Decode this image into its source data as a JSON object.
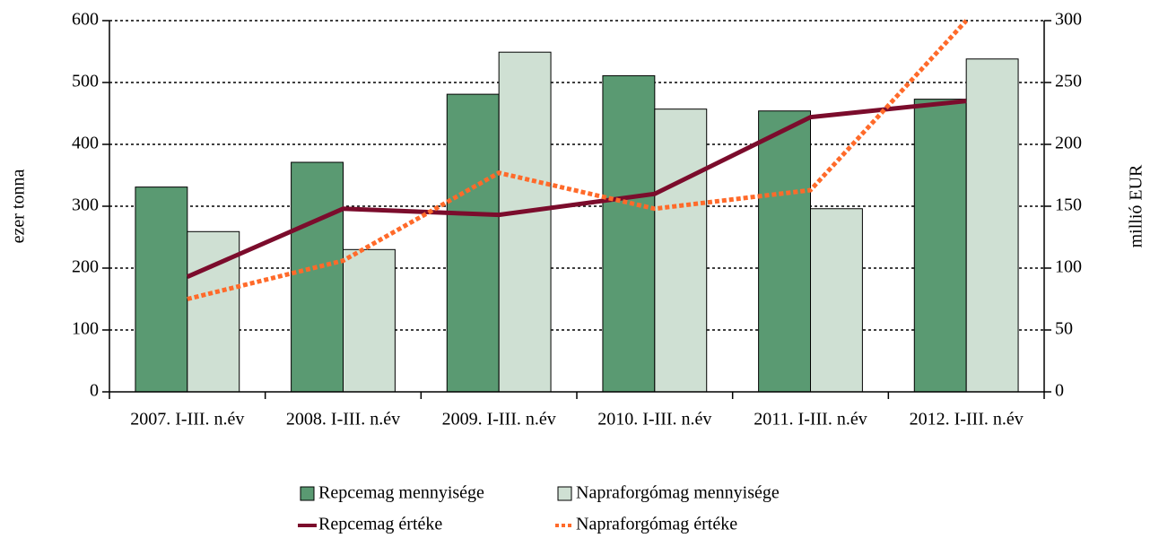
{
  "chart_data": {
    "type": "bar",
    "categories": [
      "2007. I-III. n.év",
      "2008. I-III. n.év",
      "2009. I-III. n.év",
      "2010. I-III. n.év",
      "2011. I-III. n.év",
      "2012. I-III. n.év"
    ],
    "series": [
      {
        "name": "Repcemag mennyisége",
        "type": "bar",
        "color": "#5a9a72",
        "values": [
          331,
          371,
          481,
          511,
          454,
          473
        ]
      },
      {
        "name": "Napraforgómag mennyisége",
        "type": "bar",
        "color": "#cfe0d3",
        "values": [
          259,
          230,
          549,
          457,
          296,
          538
        ]
      },
      {
        "name": "Repcemag értéke",
        "type": "line",
        "axis": "y2",
        "color": "#7b0c2c",
        "style": "solid",
        "values": [
          93,
          148,
          143,
          160,
          222,
          235
        ]
      },
      {
        "name": "Napraforgómag értéke",
        "type": "line",
        "axis": "y2",
        "color": "#ff6a2a",
        "style": "dotted",
        "values": [
          75,
          106,
          177,
          148,
          163,
          300
        ]
      }
    ],
    "ylabel": "ezer tonna",
    "y2label": "millió EUR",
    "ylim": [
      0,
      600
    ],
    "yticks": [
      0,
      100,
      200,
      300,
      400,
      500,
      600
    ],
    "y2lim": [
      0,
      300
    ],
    "y2ticks": [
      0,
      50,
      100,
      150,
      200,
      250,
      300
    ],
    "grid": true,
    "legend": "bottom"
  }
}
